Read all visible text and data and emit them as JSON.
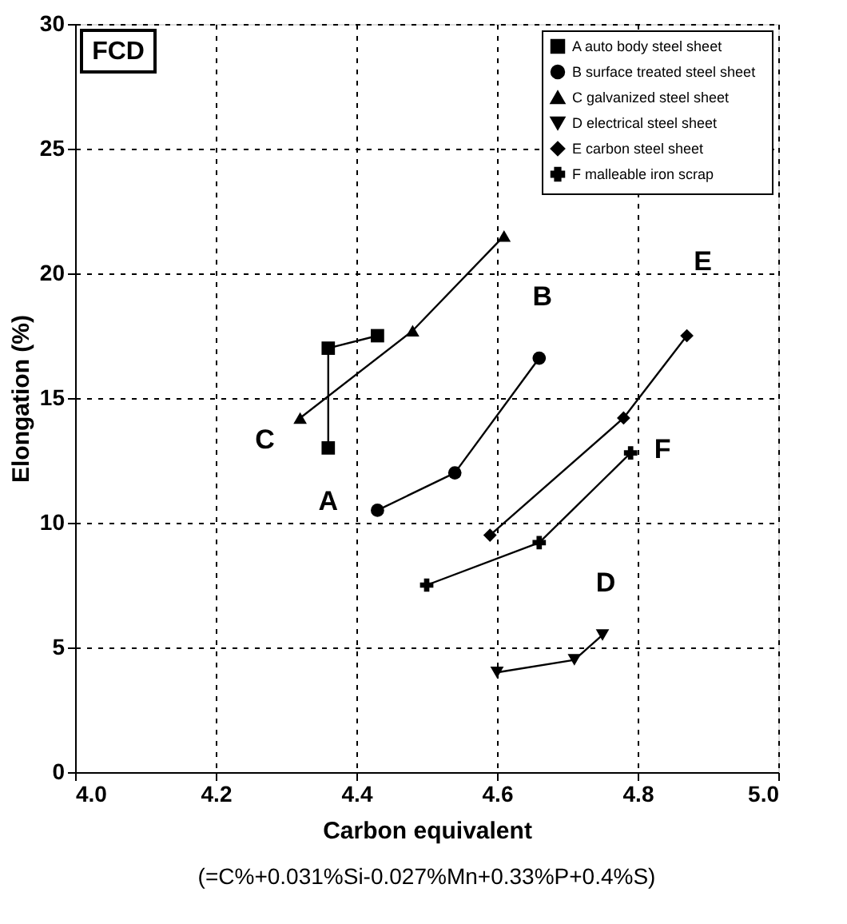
{
  "chart_data": {
    "type": "line",
    "xlabel": "Carbon equivalent",
    "ylabel": "Elongation  (%)",
    "xlim": [
      4.0,
      5.0
    ],
    "xticks": [
      {
        "value": 4.0,
        "label": "4.0"
      },
      4.2,
      4.4,
      4.6,
      4.8,
      {
        "value": 5.0,
        "label": "5.0"
      }
    ],
    "ylim": [
      0,
      30
    ],
    "yticks": [
      0,
      5,
      10,
      15,
      20,
      25,
      30
    ],
    "grid": true,
    "legend": "top right",
    "line_style": "solid",
    "series": [
      {
        "name": "A   auto body steel sheet",
        "color": "#000000",
        "marker": "square",
        "x": [
          4.43,
          4.36,
          4.36
        ],
        "values": [
          17.5,
          17.0,
          13.0
        ]
      },
      {
        "name": "B   surface treated steel sheet",
        "color": "#000000",
        "marker": "circle",
        "x": [
          4.43,
          4.54,
          4.66
        ],
        "values": [
          10.5,
          12.0,
          16.6
        ]
      },
      {
        "name": "C   galvanized steel sheet",
        "color": "#000000",
        "marker": "triangle",
        "x": [
          4.32,
          4.48,
          4.61
        ],
        "values": [
          14.2,
          17.7,
          21.5
        ]
      },
      {
        "name": "D   electrical steel sheet",
        "color": "#000000",
        "marker": "triangle-down",
        "x": [
          4.6,
          4.71,
          4.75
        ],
        "values": [
          4.0,
          4.5,
          5.5
        ]
      },
      {
        "name": "E   carbon steel sheet",
        "color": "#000000",
        "marker": "diamond",
        "x": [
          4.59,
          4.78,
          4.87
        ],
        "values": [
          9.5,
          14.2,
          17.5
        ]
      },
      {
        "name": "F   malleable iron scrap",
        "color": "#000000",
        "marker": "cross",
        "x": [
          4.5,
          4.66,
          4.79
        ],
        "values": [
          7.5,
          9.2,
          12.8
        ]
      }
    ],
    "annotations": [
      "A",
      "B",
      "C",
      "D",
      "E",
      "F",
      "FCD",
      "(=C%+0.031%Si-0.027%Mn+0.33%P+0.4%S)"
    ]
  }
}
